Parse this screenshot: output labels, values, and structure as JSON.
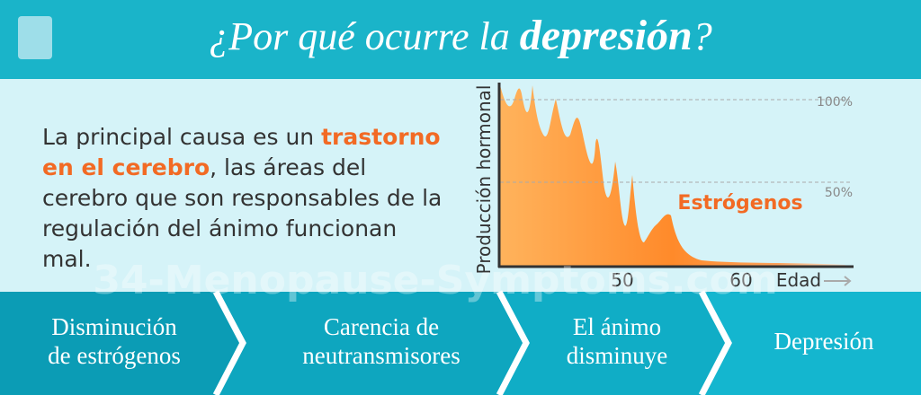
{
  "title": {
    "prefix": "¿Por qué ocurre la",
    "emphasis": "depresión",
    "suffix": "?"
  },
  "text": {
    "before": "La principal causa es un",
    "highlight": "trastorno en el cerebro",
    "after": ", las áreas del cerebro que son responsables de la regulación del ánimo funcionan mal."
  },
  "chart": {
    "y_label": "Producción hormonal",
    "x_label": "Edad",
    "series_label": "Estrógenos",
    "y_ticks": [
      "100%",
      "50%"
    ],
    "x_ticks": [
      "50",
      "60"
    ]
  },
  "watermark": "34-Menopause-Symptoms.com",
  "steps": [
    [
      "Disminución",
      "de estrógenos"
    ],
    [
      "Carencia de",
      "neutransmisores"
    ],
    [
      "El ánimo",
      "disminuye"
    ],
    [
      "Depresión"
    ]
  ]
}
